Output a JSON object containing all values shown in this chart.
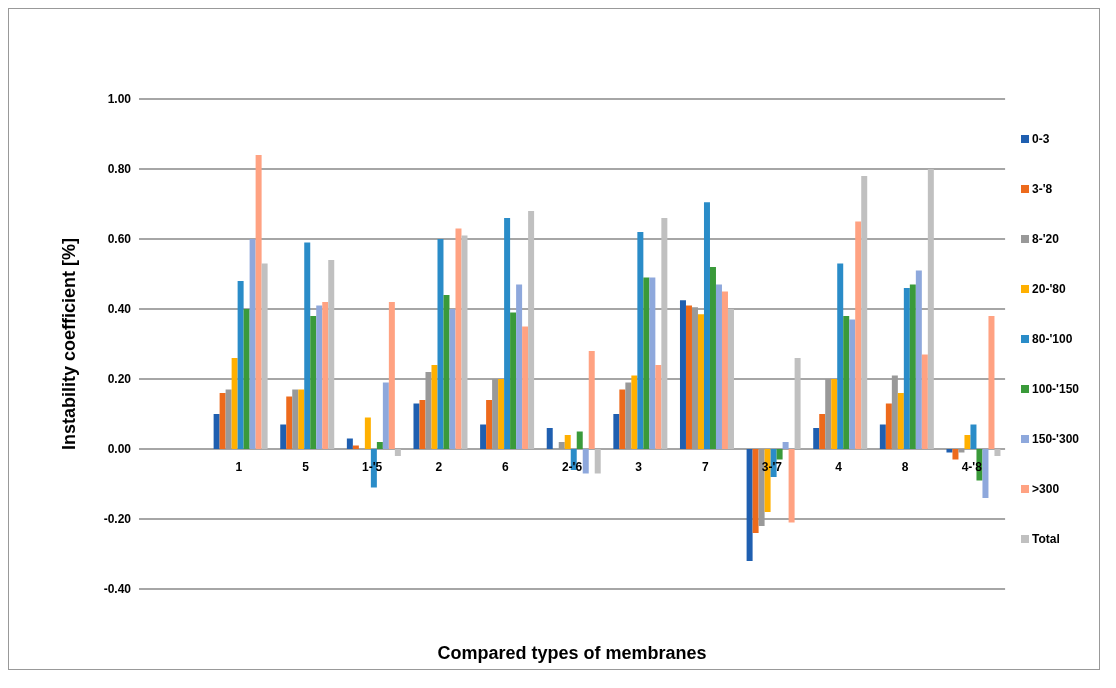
{
  "chart_data": {
    "type": "bar",
    "xlabel": "Compared types  of membranes",
    "ylabel": "Instability coefficient [%]",
    "categories": [
      null,
      "1",
      "5",
      "1-'5",
      "2",
      "6",
      "2-'6",
      "3",
      "7",
      "3-'7",
      "4",
      "8",
      "4-'8"
    ],
    "series": [
      {
        "name": "0-3",
        "color": "#1f5fb0",
        "values": [
          null,
          0.1,
          0.07,
          0.03,
          0.13,
          0.07,
          0.06,
          0.1,
          0.425,
          -0.32,
          0.06,
          0.07,
          -0.01
        ]
      },
      {
        "name": "3-'8",
        "color": "#ed6a1c",
        "values": [
          null,
          0.16,
          0.15,
          0.01,
          0.14,
          0.14,
          0,
          0.17,
          0.41,
          -0.24,
          0.1,
          0.13,
          -0.03
        ]
      },
      {
        "name": "8-'20",
        "color": "#999999",
        "values": [
          null,
          0.17,
          0.17,
          0,
          0.22,
          0.2,
          0.02,
          0.19,
          0.405,
          -0.22,
          0.2,
          0.21,
          -0.01
        ]
      },
      {
        "name": "20-'80",
        "color": "#ffb000",
        "values": [
          null,
          0.26,
          0.17,
          0.09,
          0.24,
          0.2,
          0.04,
          0.21,
          0.385,
          -0.18,
          0.2,
          0.16,
          0.04
        ]
      },
      {
        "name": "80-'100",
        "color": "#2a8cc8",
        "values": [
          null,
          0.48,
          0.59,
          -0.11,
          0.6,
          0.66,
          -0.06,
          0.62,
          0.705,
          -0.08,
          0.53,
          0.46,
          0.07
        ]
      },
      {
        "name": "100-'150",
        "color": "#3a9a3a",
        "values": [
          null,
          0.4,
          0.38,
          0.02,
          0.44,
          0.39,
          0.05,
          0.49,
          0.52,
          -0.03,
          0.38,
          0.47,
          -0.09
        ]
      },
      {
        "name": "150-'300",
        "color": "#8ea8dc",
        "values": [
          null,
          0.6,
          0.41,
          0.19,
          0.4,
          0.47,
          -0.07,
          0.49,
          0.47,
          0.02,
          0.37,
          0.51,
          -0.14
        ]
      },
      {
        "name": ">300",
        "color": "#ffa282",
        "values": [
          null,
          0.84,
          0.42,
          0.42,
          0.63,
          0.35,
          0.28,
          0.24,
          0.45,
          -0.21,
          0.65,
          0.27,
          0.38
        ]
      },
      {
        "name": "Total",
        "color": "#c0c0c0",
        "values": [
          null,
          0.53,
          0.54,
          -0.02,
          0.61,
          0.68,
          -0.07,
          0.66,
          0.4,
          0.26,
          0.78,
          0.8,
          -0.02
        ]
      }
    ],
    "ylim": [
      -0.4,
      1.0
    ],
    "yticks": [
      {
        "value": -0.4,
        "label": "-0.40"
      },
      {
        "value": -0.2,
        "label": "-0.20"
      },
      {
        "value": 0,
        "label": "0.00"
      },
      {
        "value": 0.2,
        "label": "0.20"
      },
      {
        "value": 0.4,
        "label": "0.40"
      },
      {
        "value": 0.6,
        "label": "0.60"
      },
      {
        "value": 0.8,
        "label": "0.80"
      },
      {
        "value": 1.0,
        "label": "1.00"
      }
    ],
    "grid": "y",
    "legend": "right"
  }
}
